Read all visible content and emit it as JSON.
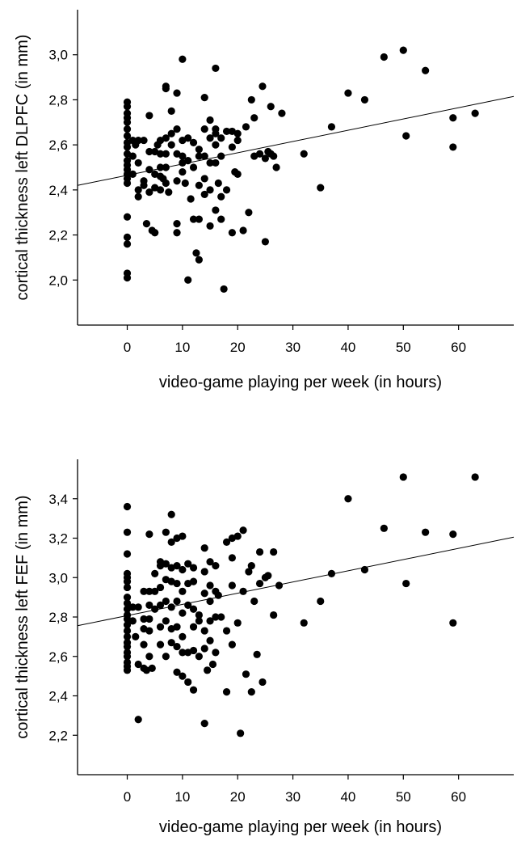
{
  "chart_data": [
    {
      "type": "scatter",
      "xlabel": "video-game playing per week (in hours)",
      "ylabel": "cortical thickness left DLPFC (in mm)",
      "xlim": [
        -9,
        70
      ],
      "ylim": [
        1.8,
        3.2
      ],
      "xticks": [
        0,
        10,
        20,
        30,
        40,
        50,
        60
      ],
      "xtick_labels": [
        "0",
        "10",
        "20",
        "30",
        "40",
        "50",
        "60"
      ],
      "yticks": [
        2.0,
        2.2,
        2.4,
        2.6,
        2.8,
        3.0
      ],
      "ytick_labels": [
        "2,0",
        "2,2",
        "2,4",
        "2,6",
        "2,8",
        "3,0"
      ],
      "fit_line": {
        "x": [
          -9,
          70
        ],
        "y": [
          2.42,
          2.815
        ]
      },
      "points": [
        [
          0,
          2.79
        ],
        [
          0,
          2.77
        ],
        [
          0,
          2.74
        ],
        [
          0,
          2.72
        ],
        [
          0,
          2.7
        ],
        [
          0,
          2.67
        ],
        [
          0,
          2.64
        ],
        [
          0,
          2.61
        ],
        [
          0,
          2.59
        ],
        [
          0,
          2.56
        ],
        [
          0,
          2.53
        ],
        [
          0,
          2.51
        ],
        [
          0,
          2.49
        ],
        [
          0,
          2.47
        ],
        [
          0,
          2.45
        ],
        [
          0,
          2.43
        ],
        [
          0,
          2.28
        ],
        [
          0,
          2.19
        ],
        [
          0,
          2.16
        ],
        [
          0,
          2.03
        ],
        [
          0,
          2.01
        ],
        [
          1,
          2.62
        ],
        [
          1,
          2.55
        ],
        [
          1,
          2.47
        ],
        [
          1.5,
          2.6
        ],
        [
          2,
          2.62
        ],
        [
          2,
          2.52
        ],
        [
          2,
          2.4
        ],
        [
          2,
          2.37
        ],
        [
          3,
          2.62
        ],
        [
          3,
          2.44
        ],
        [
          3,
          2.42
        ],
        [
          3.5,
          2.25
        ],
        [
          4,
          2.73
        ],
        [
          4,
          2.57
        ],
        [
          4,
          2.49
        ],
        [
          4,
          2.39
        ],
        [
          4.5,
          2.22
        ],
        [
          5,
          2.57
        ],
        [
          5,
          2.47
        ],
        [
          5,
          2.41
        ],
        [
          5,
          2.21
        ],
        [
          5.5,
          2.6
        ],
        [
          6,
          2.62
        ],
        [
          6,
          2.56
        ],
        [
          6,
          2.5
        ],
        [
          6,
          2.46
        ],
        [
          6,
          2.4
        ],
        [
          6.5,
          2.45
        ],
        [
          7,
          2.86
        ],
        [
          7,
          2.85
        ],
        [
          7,
          2.63
        ],
        [
          7,
          2.56
        ],
        [
          7,
          2.5
        ],
        [
          7,
          2.43
        ],
        [
          7.5,
          2.39
        ],
        [
          8,
          2.75
        ],
        [
          8,
          2.65
        ],
        [
          8,
          2.6
        ],
        [
          9,
          2.83
        ],
        [
          9,
          2.67
        ],
        [
          9,
          2.56
        ],
        [
          9,
          2.44
        ],
        [
          9,
          2.25
        ],
        [
          9,
          2.21
        ],
        [
          10,
          2.98
        ],
        [
          10,
          2.62
        ],
        [
          10,
          2.55
        ],
        [
          10,
          2.52
        ],
        [
          10,
          2.48
        ],
        [
          10.5,
          2.43
        ],
        [
          11,
          2.63
        ],
        [
          11,
          2.53
        ],
        [
          11,
          2.0
        ],
        [
          11.5,
          2.36
        ],
        [
          12,
          2.61
        ],
        [
          12,
          2.5
        ],
        [
          12,
          2.27
        ],
        [
          12.5,
          2.12
        ],
        [
          13,
          2.58
        ],
        [
          13,
          2.55
        ],
        [
          13,
          2.42
        ],
        [
          13,
          2.27
        ],
        [
          13,
          2.09
        ],
        [
          14,
          2.81
        ],
        [
          14,
          2.67
        ],
        [
          14,
          2.55
        ],
        [
          14,
          2.45
        ],
        [
          14,
          2.38
        ],
        [
          15,
          2.71
        ],
        [
          15,
          2.63
        ],
        [
          15,
          2.52
        ],
        [
          15,
          2.4
        ],
        [
          15,
          2.24
        ],
        [
          16,
          2.94
        ],
        [
          16,
          2.67
        ],
        [
          16,
          2.65
        ],
        [
          16,
          2.6
        ],
        [
          16,
          2.52
        ],
        [
          16,
          2.31
        ],
        [
          16.5,
          2.43
        ],
        [
          17,
          2.63
        ],
        [
          17,
          2.55
        ],
        [
          17,
          2.37
        ],
        [
          17,
          2.27
        ],
        [
          17.5,
          1.96
        ],
        [
          18,
          2.66
        ],
        [
          18,
          2.4
        ],
        [
          19,
          2.66
        ],
        [
          19,
          2.59
        ],
        [
          19,
          2.21
        ],
        [
          19.5,
          2.48
        ],
        [
          20,
          2.65
        ],
        [
          20,
          2.62
        ],
        [
          20,
          2.47
        ],
        [
          21,
          2.22
        ],
        [
          21.5,
          2.68
        ],
        [
          22,
          2.3
        ],
        [
          22.5,
          2.8
        ],
        [
          23,
          2.72
        ],
        [
          23,
          2.55
        ],
        [
          24,
          2.56
        ],
        [
          24.5,
          2.86
        ],
        [
          25,
          2.54
        ],
        [
          25,
          2.17
        ],
        [
          25.5,
          2.57
        ],
        [
          26,
          2.77
        ],
        [
          26,
          2.56
        ],
        [
          26.5,
          2.55
        ],
        [
          27,
          2.5
        ],
        [
          28,
          2.74
        ],
        [
          32,
          2.56
        ],
        [
          35,
          2.41
        ],
        [
          37,
          2.68
        ],
        [
          40,
          2.83
        ],
        [
          43,
          2.8
        ],
        [
          46.5,
          2.99
        ],
        [
          50,
          3.02
        ],
        [
          50.5,
          2.64
        ],
        [
          54,
          2.93
        ],
        [
          59,
          2.72
        ],
        [
          59,
          2.59
        ],
        [
          63,
          2.74
        ]
      ]
    },
    {
      "type": "scatter",
      "xlabel": "video-game playing per week (in hours)",
      "ylabel": "cortical thickness left FEF (in mm)",
      "xlim": [
        -9,
        70
      ],
      "ylim": [
        2.0,
        3.6
      ],
      "xticks": [
        0,
        10,
        20,
        30,
        40,
        50,
        60
      ],
      "xtick_labels": [
        "0",
        "10",
        "20",
        "30",
        "40",
        "50",
        "60"
      ],
      "yticks": [
        2.2,
        2.4,
        2.6,
        2.8,
        3.0,
        3.2,
        3.4
      ],
      "ytick_labels": [
        "2,2",
        "2,4",
        "2,6",
        "2,8",
        "3,0",
        "3,2",
        "3,4"
      ],
      "fit_line": {
        "x": [
          -9,
          70
        ],
        "y": [
          2.756,
          3.205
        ]
      },
      "points": [
        [
          0,
          3.36
        ],
        [
          0,
          3.23
        ],
        [
          0,
          3.12
        ],
        [
          0,
          3.02
        ],
        [
          0,
          3.0
        ],
        [
          0,
          2.98
        ],
        [
          0,
          2.95
        ],
        [
          0,
          2.9
        ],
        [
          0,
          2.87
        ],
        [
          0,
          2.84
        ],
        [
          0,
          2.81
        ],
        [
          0,
          2.79
        ],
        [
          0,
          2.76
        ],
        [
          0,
          2.73
        ],
        [
          0,
          2.7
        ],
        [
          0,
          2.67
        ],
        [
          0,
          2.65
        ],
        [
          0,
          2.62
        ],
        [
          0,
          2.6
        ],
        [
          0,
          2.57
        ],
        [
          0,
          2.55
        ],
        [
          0,
          2.53
        ],
        [
          1,
          2.85
        ],
        [
          1,
          2.78
        ],
        [
          1.5,
          2.7
        ],
        [
          2,
          2.85
        ],
        [
          2,
          2.56
        ],
        [
          2,
          2.28
        ],
        [
          3,
          2.93
        ],
        [
          3,
          2.79
        ],
        [
          3,
          2.74
        ],
        [
          3,
          2.66
        ],
        [
          3,
          2.54
        ],
        [
          3.5,
          2.53
        ],
        [
          4,
          3.22
        ],
        [
          4,
          2.93
        ],
        [
          4,
          2.86
        ],
        [
          4,
          2.79
        ],
        [
          4,
          2.73
        ],
        [
          4,
          2.6
        ],
        [
          4.5,
          2.54
        ],
        [
          5,
          3.02
        ],
        [
          5,
          2.93
        ],
        [
          5,
          2.84
        ],
        [
          6,
          3.08
        ],
        [
          6,
          3.06
        ],
        [
          6,
          2.95
        ],
        [
          6,
          2.86
        ],
        [
          6,
          2.75
        ],
        [
          6,
          2.66
        ],
        [
          7,
          3.23
        ],
        [
          7,
          3.07
        ],
        [
          7,
          2.99
        ],
        [
          7,
          2.88
        ],
        [
          7,
          2.78
        ],
        [
          7,
          2.6
        ],
        [
          8,
          3.32
        ],
        [
          8,
          3.18
        ],
        [
          8,
          3.05
        ],
        [
          8,
          2.98
        ],
        [
          8,
          2.85
        ],
        [
          8,
          2.74
        ],
        [
          8,
          2.67
        ],
        [
          9,
          3.2
        ],
        [
          9,
          3.06
        ],
        [
          9,
          2.97
        ],
        [
          9,
          2.88
        ],
        [
          9,
          2.75
        ],
        [
          9,
          2.65
        ],
        [
          9,
          2.52
        ],
        [
          10,
          3.21
        ],
        [
          10,
          3.04
        ],
        [
          10,
          2.93
        ],
        [
          10,
          2.82
        ],
        [
          10,
          2.7
        ],
        [
          10,
          2.62
        ],
        [
          10,
          2.5
        ],
        [
          11,
          3.07
        ],
        [
          11,
          2.97
        ],
        [
          11,
          2.86
        ],
        [
          11,
          2.62
        ],
        [
          11,
          2.47
        ],
        [
          12,
          3.05
        ],
        [
          12,
          2.98
        ],
        [
          12,
          2.84
        ],
        [
          12,
          2.75
        ],
        [
          12,
          2.63
        ],
        [
          12,
          2.43
        ],
        [
          13,
          2.81
        ],
        [
          13,
          2.78
        ],
        [
          13,
          2.6
        ],
        [
          14,
          3.15
        ],
        [
          14,
          3.03
        ],
        [
          14,
          2.92
        ],
        [
          14,
          2.73
        ],
        [
          14,
          2.64
        ],
        [
          14,
          2.26
        ],
        [
          14.5,
          2.53
        ],
        [
          15,
          3.08
        ],
        [
          15,
          2.96
        ],
        [
          15,
          2.88
        ],
        [
          15,
          2.78
        ],
        [
          15,
          2.68
        ],
        [
          15.5,
          2.56
        ],
        [
          16,
          3.06
        ],
        [
          16,
          2.93
        ],
        [
          16,
          2.8
        ],
        [
          16,
          2.62
        ],
        [
          16.5,
          2.91
        ],
        [
          17,
          2.8
        ],
        [
          18,
          3.18
        ],
        [
          18,
          2.73
        ],
        [
          18,
          2.42
        ],
        [
          19,
          3.2
        ],
        [
          19,
          3.1
        ],
        [
          19,
          2.96
        ],
        [
          19,
          2.66
        ],
        [
          20,
          3.21
        ],
        [
          20,
          2.77
        ],
        [
          20.5,
          2.21
        ],
        [
          21,
          3.24
        ],
        [
          21,
          2.93
        ],
        [
          21.5,
          2.51
        ],
        [
          22,
          3.03
        ],
        [
          22.5,
          3.06
        ],
        [
          22.5,
          2.42
        ],
        [
          23,
          2.88
        ],
        [
          23.5,
          2.61
        ],
        [
          24,
          3.13
        ],
        [
          24,
          2.97
        ],
        [
          24.5,
          2.47
        ],
        [
          25,
          3.0
        ],
        [
          25.5,
          3.01
        ],
        [
          26.5,
          3.13
        ],
        [
          26.5,
          2.81
        ],
        [
          27.5,
          2.96
        ],
        [
          32,
          2.77
        ],
        [
          35,
          2.88
        ],
        [
          37,
          3.02
        ],
        [
          40,
          3.4
        ],
        [
          43,
          3.04
        ],
        [
          46.5,
          3.25
        ],
        [
          50,
          3.51
        ],
        [
          50.5,
          2.97
        ],
        [
          54,
          3.23
        ],
        [
          59,
          3.22
        ],
        [
          59,
          2.77
        ],
        [
          63,
          3.51
        ]
      ]
    }
  ]
}
